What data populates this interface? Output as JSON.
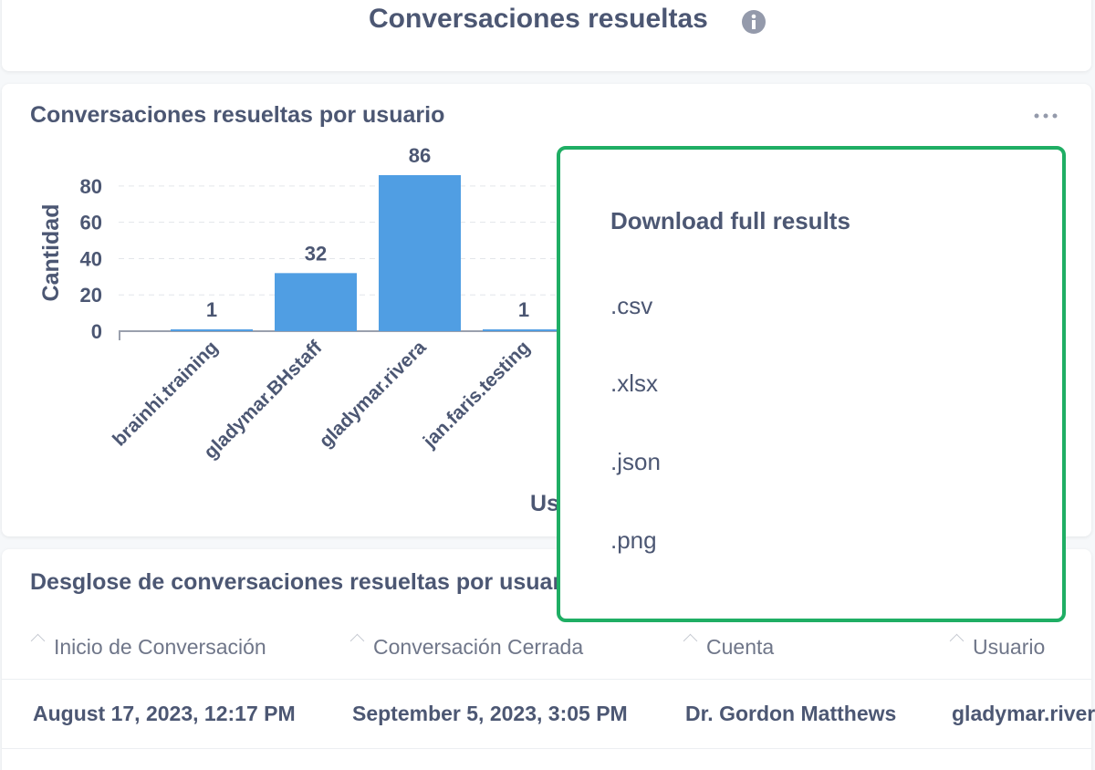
{
  "header": {
    "title": "Conversaciones resueltas"
  },
  "chart_data": {
    "type": "bar",
    "title": "Conversaciones resueltas por usuario",
    "x_label": "Usuario",
    "y_label": "Cantidad",
    "categories": [
      "brainhi.training",
      "gladymar.BHstaff",
      "gladymar.rivera",
      "jan.faris.testing"
    ],
    "values": [
      1,
      32,
      86,
      1
    ],
    "color": "#509ee3",
    "ylim": [
      0,
      90
    ],
    "yticks": [
      0,
      20,
      40,
      60,
      80
    ],
    "grid": true
  },
  "table": {
    "title": "Desglose de conversaciones resueltas por usuario",
    "columns": [
      "Inicio de Conversación",
      "Conversación Cerrada",
      "Cuenta",
      "Usuario"
    ],
    "rows": [
      [
        "August 17, 2023, 12:17 PM",
        "September 5, 2023, 3:05 PM",
        "Dr. Gordon Matthews",
        "gladymar.rivera"
      ]
    ]
  },
  "menu": {
    "title": "Download full results",
    "items": [
      ".csv",
      ".xlsx",
      ".json",
      ".png"
    ]
  }
}
